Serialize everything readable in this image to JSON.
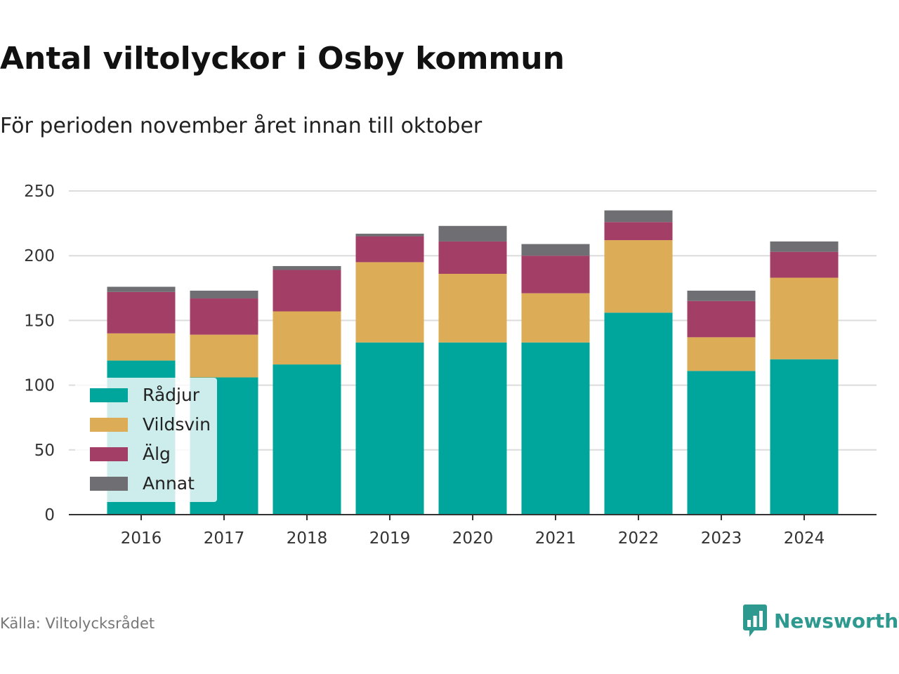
{
  "title": "Antal viltolyckor i Osby kommun",
  "subtitle": "För perioden november året innan till oktober",
  "source": "Källa: Viltolycksrådet",
  "brand": {
    "name": "Newsworthy",
    "icon": "newsworthy-logo-icon",
    "color": "#2e9a8f"
  },
  "chart_data": {
    "type": "bar",
    "stacked": true,
    "categories": [
      "2016",
      "2017",
      "2018",
      "2019",
      "2020",
      "2021",
      "2022",
      "2023",
      "2024"
    ],
    "series": [
      {
        "name": "Rådjur",
        "color": "#00a59b",
        "values": [
          119,
          106,
          116,
          133,
          133,
          133,
          156,
          111,
          120
        ]
      },
      {
        "name": "Vildsvin",
        "color": "#dcac57",
        "values": [
          21,
          33,
          41,
          62,
          53,
          38,
          56,
          26,
          63
        ]
      },
      {
        "name": "Älg",
        "color": "#a33f67",
        "values": [
          32,
          28,
          32,
          20,
          25,
          29,
          14,
          28,
          20
        ]
      },
      {
        "name": "Annat",
        "color": "#6e6e73",
        "values": [
          4,
          6,
          3,
          2,
          12,
          9,
          9,
          8,
          8
        ]
      }
    ],
    "ylim": [
      0,
      250
    ],
    "yticks": [
      0,
      50,
      100,
      150,
      200,
      250
    ],
    "xlabel": "",
    "ylabel": "",
    "grid": true,
    "legend": {
      "position": "bottom-left"
    }
  }
}
